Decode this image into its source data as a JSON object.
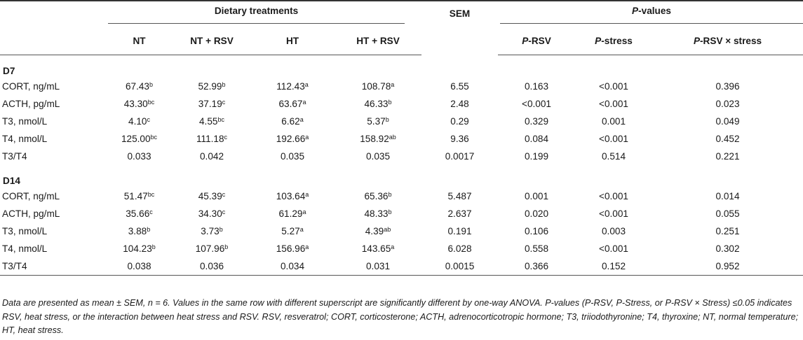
{
  "header": {
    "group_dietary": "Dietary treatments",
    "sem": "SEM",
    "group_pvalues_italic": "P",
    "group_pvalues_rest": "-values",
    "columns": [
      {
        "italic": "",
        "text": "NT"
      },
      {
        "italic": "",
        "text": "NT + RSV"
      },
      {
        "italic": "",
        "text": "HT"
      },
      {
        "italic": "",
        "text": "HT + RSV"
      },
      {
        "italic": "P",
        "text": "-RSV"
      },
      {
        "italic": "P",
        "text": "-stress"
      },
      {
        "italic": "P",
        "text": "-RSV × stress"
      }
    ]
  },
  "sections": [
    {
      "label": "D7",
      "rows": [
        {
          "label": "CORT, ng/mL",
          "nt": "67.43",
          "nt_sup": "b",
          "ntrsv": "52.99",
          "ntrsv_sup": "b",
          "ht": "112.43",
          "ht_sup": "a",
          "htrsv": "108.78",
          "htrsv_sup": "a",
          "sem": "6.55",
          "p_rsv": "0.163",
          "p_stress": "<0.001",
          "p_int": "0.396"
        },
        {
          "label": "ACTH, pg/mL",
          "nt": "43.30",
          "nt_sup": "bc",
          "ntrsv": "37.19",
          "ntrsv_sup": "c",
          "ht": "63.67",
          "ht_sup": "a",
          "htrsv": "46.33",
          "htrsv_sup": "b",
          "sem": "2.48",
          "p_rsv": "<0.001",
          "p_stress": "<0.001",
          "p_int": "0.023"
        },
        {
          "label": "T3, nmol/L",
          "nt": "4.10",
          "nt_sup": "c",
          "ntrsv": "4.55",
          "ntrsv_sup": "bc",
          "ht": "6.62",
          "ht_sup": "a",
          "htrsv": "5.37",
          "htrsv_sup": "b",
          "sem": "0.29",
          "p_rsv": "0.329",
          "p_stress": "0.001",
          "p_int": "0.049"
        },
        {
          "label": "T4, nmol/L",
          "nt": "125.00",
          "nt_sup": "bc",
          "ntrsv": "111.18",
          "ntrsv_sup": "c",
          "ht": "192.66",
          "ht_sup": "a",
          "htrsv": "158.92",
          "htrsv_sup": "ab",
          "sem": "9.36",
          "p_rsv": "0.084",
          "p_stress": "<0.001",
          "p_int": "0.452"
        },
        {
          "label": "T3/T4",
          "nt": "0.033",
          "nt_sup": "",
          "ntrsv": "0.042",
          "ntrsv_sup": "",
          "ht": "0.035",
          "ht_sup": "",
          "htrsv": "0.035",
          "htrsv_sup": "",
          "sem": "0.0017",
          "p_rsv": "0.199",
          "p_stress": "0.514",
          "p_int": "0.221"
        }
      ]
    },
    {
      "label": "D14",
      "rows": [
        {
          "label": "CORT, ng/mL",
          "nt": "51.47",
          "nt_sup": "bc",
          "ntrsv": "45.39",
          "ntrsv_sup": "c",
          "ht": "103.64",
          "ht_sup": "a",
          "htrsv": "65.36",
          "htrsv_sup": "b",
          "sem": "5.487",
          "p_rsv": "0.001",
          "p_stress": "<0.001",
          "p_int": "0.014"
        },
        {
          "label": "ACTH, pg/mL",
          "nt": "35.66",
          "nt_sup": "c",
          "ntrsv": "34.30",
          "ntrsv_sup": "c",
          "ht": "61.29",
          "ht_sup": "a",
          "htrsv": "48.33",
          "htrsv_sup": "b",
          "sem": "2.637",
          "p_rsv": "0.020",
          "p_stress": "<0.001",
          "p_int": "0.055"
        },
        {
          "label": "T3, nmol/L",
          "nt": "3.88",
          "nt_sup": "b",
          "ntrsv": "3.73",
          "ntrsv_sup": "b",
          "ht": "5.27",
          "ht_sup": "a",
          "htrsv": "4.39",
          "htrsv_sup": "ab",
          "sem": "0.191",
          "p_rsv": "0.106",
          "p_stress": "0.003",
          "p_int": "0.251"
        },
        {
          "label": "T4, nmol/L",
          "nt": "104.23",
          "nt_sup": "b",
          "ntrsv": "107.96",
          "ntrsv_sup": "b",
          "ht": "156.96",
          "ht_sup": "a",
          "htrsv": "143.65",
          "htrsv_sup": "a",
          "sem": "6.028",
          "p_rsv": "0.558",
          "p_stress": "<0.001",
          "p_int": "0.302"
        },
        {
          "label": "T3/T4",
          "nt": "0.038",
          "nt_sup": "",
          "ntrsv": "0.036",
          "ntrsv_sup": "",
          "ht": "0.034",
          "ht_sup": "",
          "htrsv": "0.031",
          "htrsv_sup": "",
          "sem": "0.0015",
          "p_rsv": "0.366",
          "p_stress": "0.152",
          "p_int": "0.952"
        }
      ]
    }
  ],
  "footnote": "Data are presented as mean ± SEM, n = 6. Values in the same row with different superscript are significantly different by one-way ANOVA. P-values (P-RSV, P-Stress, or P-RSV × Stress) ≤0.05 indicates RSV, heat stress, or the interaction between heat stress and RSV. RSV, resveratrol; CORT, corticosterone; ACTH, adrenocorticotropic hormone; T3, triiodothyronine; T4, thyroxine; NT, normal temperature; HT, heat stress."
}
